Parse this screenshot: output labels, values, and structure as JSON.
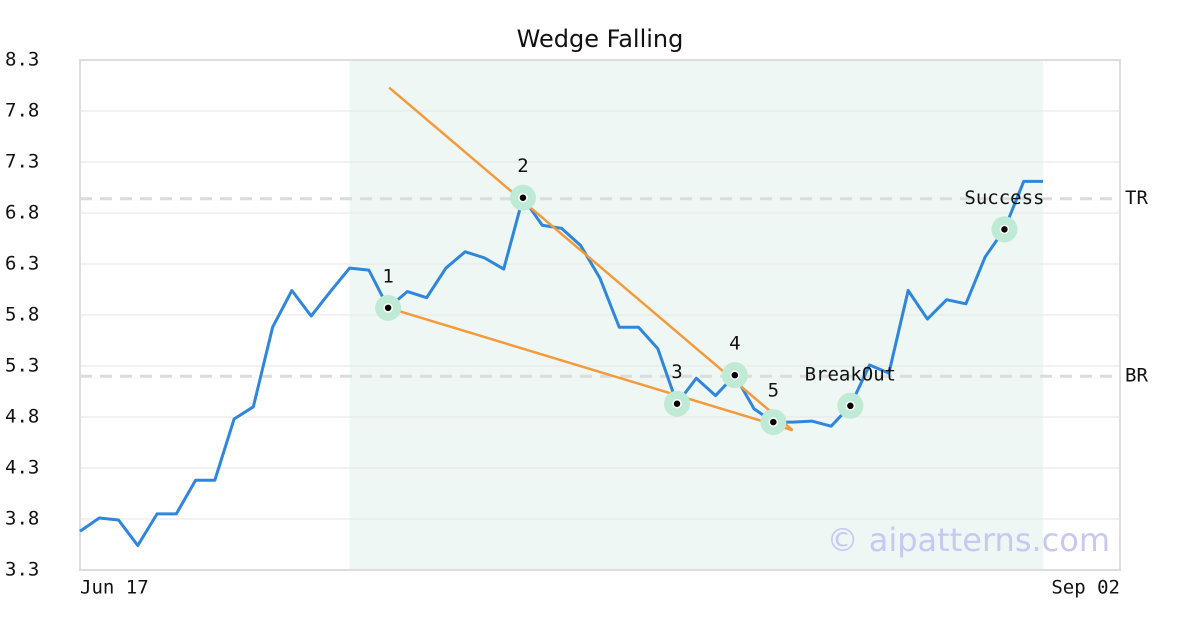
{
  "chart_data": {
    "type": "line",
    "title": "Wedge Falling",
    "x": [
      0,
      1,
      2,
      3,
      4,
      5,
      6,
      7,
      8,
      9,
      10,
      11,
      12,
      13,
      14,
      15,
      16,
      17,
      18,
      19,
      20,
      21,
      22,
      23,
      24,
      25,
      26,
      27,
      28,
      29,
      30,
      31,
      32,
      33,
      34,
      35,
      36,
      37,
      38,
      39,
      40,
      41,
      42,
      43,
      44,
      45,
      46,
      47,
      48,
      49,
      50
    ],
    "series": [
      {
        "color": "#2e86de",
        "values": [
          3.68,
          3.81,
          3.79,
          3.54,
          3.85,
          3.85,
          4.18,
          4.18,
          4.78,
          4.9,
          5.68,
          6.04,
          5.79,
          6.03,
          6.26,
          6.24,
          5.87,
          6.03,
          5.97,
          6.26,
          6.42,
          6.36,
          6.25,
          6.95,
          6.68,
          6.65,
          6.48,
          6.16,
          5.68,
          5.68,
          5.47,
          4.93,
          5.18,
          5.01,
          5.21,
          4.88,
          4.75,
          4.75,
          4.76,
          4.71,
          4.91,
          5.31,
          5.23,
          6.04,
          5.76,
          5.95,
          5.91,
          6.37,
          6.64,
          7.11,
          7.11
        ]
      }
    ],
    "xlim": [
      0,
      54
    ],
    "xticks": [
      {
        "value": 0,
        "label": "Jun 17"
      },
      {
        "value": 54,
        "label": "Sep 02"
      }
    ],
    "ylim": [
      3.3,
      8.3
    ],
    "yticks": [
      3.3,
      3.8,
      4.3,
      4.8,
      5.3,
      5.8,
      6.3,
      6.8,
      7.3,
      7.8,
      8.3
    ],
    "grid": true,
    "highlight": [
      14,
      50
    ],
    "highlight_color": "#eef7f3",
    "trend_color": "#f59a3c",
    "trendlines": [
      {
        "x": [
          16.05,
          37
        ],
        "values": [
          8.03,
          4.67
        ]
      },
      {
        "x": [
          16,
          37
        ],
        "values": [
          5.87,
          4.67
        ]
      }
    ],
    "levels": [
      {
        "label": "TR",
        "value": 6.94
      },
      {
        "label": "BR",
        "value": 5.2
      }
    ],
    "points": [
      {
        "label": "1",
        "x": 16,
        "value": 5.87
      },
      {
        "label": "2",
        "x": 23,
        "value": 6.95
      },
      {
        "label": "3",
        "x": 31,
        "value": 4.93
      },
      {
        "label": "4",
        "x": 34,
        "value": 5.21
      },
      {
        "label": "5",
        "x": 36,
        "value": 4.75
      },
      {
        "label": "BreakOut",
        "x": 40,
        "value": 4.91
      },
      {
        "label": "Success",
        "x": 48,
        "value": 6.64
      }
    ],
    "watermark": "© aipatterns.com"
  }
}
